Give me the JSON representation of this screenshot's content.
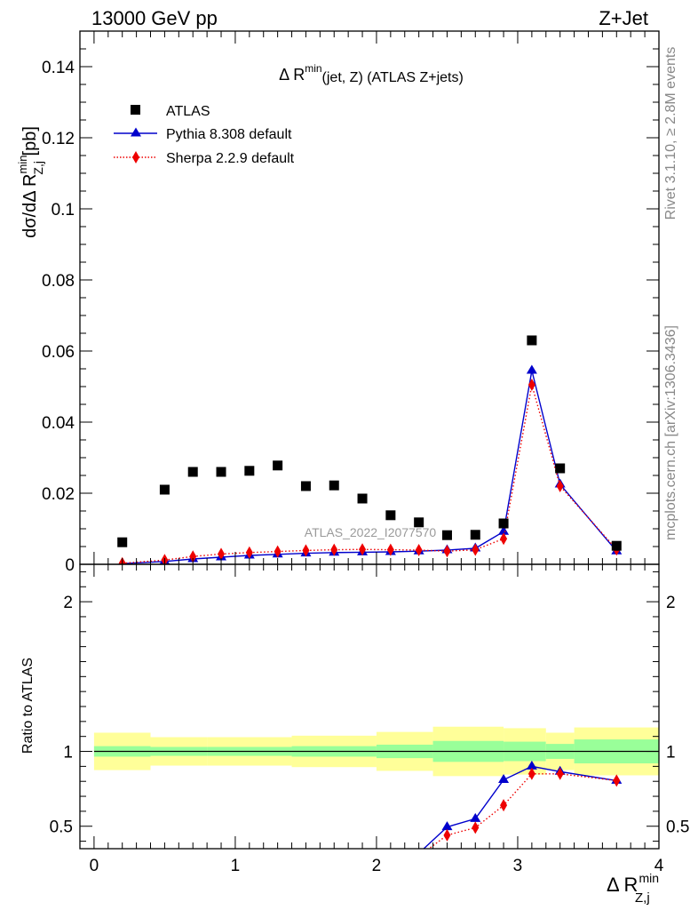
{
  "header": {
    "left": "13000 GeV pp",
    "right": "Z+Jet"
  },
  "side_labels": {
    "rivet": "Rivet 3.1.10, ≥ 2.8M events",
    "mcplots": "mcplots.cern.ch [arXiv:1306.3436]"
  },
  "watermark": "ATLAS_2022_I2077570",
  "chart_data": [
    {
      "type": "scatter",
      "panel": "main",
      "title": "Δ R^min(jet, Z) (ATLAS Z+jets)",
      "title_parts": {
        "pre": "Δ R",
        "sup": "min",
        "sub": "(jet, Z) (ATLAS Z+jets)"
      },
      "ylabel_parts": {
        "pre": "dσ/dΔ R",
        "sup": "min",
        "sub": "Z,j",
        "post": " [pb]"
      },
      "xlim": [
        -0.1,
        4.0
      ],
      "ylim": [
        0,
        0.15
      ],
      "yticks": [
        0,
        0.02,
        0.04,
        0.06,
        0.08,
        0.1,
        0.12,
        0.14
      ],
      "ytick_labels": [
        "0",
        "0.02",
        "0.04",
        "0.06",
        "0.08",
        "0.1",
        "0.12",
        "0.14"
      ],
      "legend_position": "top-left",
      "series": [
        {
          "name": "ATLAS",
          "color": "#000000",
          "marker": "square",
          "x": [
            0.2,
            0.5,
            0.7,
            0.9,
            1.1,
            1.3,
            1.5,
            1.7,
            1.9,
            2.1,
            2.3,
            2.5,
            2.7,
            2.9,
            3.1,
            3.3,
            3.7
          ],
          "y": [
            0.0062,
            0.021,
            0.026,
            0.026,
            0.0263,
            0.0278,
            0.022,
            0.0222,
            0.0185,
            0.0138,
            0.0118,
            0.0082,
            0.0083,
            0.0115,
            0.063,
            0.027,
            0.0052
          ]
        },
        {
          "name": "Pythia 8.308 default",
          "color": "#0000cc",
          "marker": "triangle",
          "line": "solid",
          "x": [
            0.2,
            0.5,
            0.7,
            0.9,
            1.1,
            1.3,
            1.5,
            1.7,
            1.9,
            2.1,
            2.3,
            2.5,
            2.7,
            2.9,
            3.1,
            3.3,
            3.7
          ],
          "y": [
            0.0002,
            0.0008,
            0.0015,
            0.002,
            0.0025,
            0.0028,
            0.0031,
            0.0033,
            0.0034,
            0.0035,
            0.0037,
            0.004,
            0.0045,
            0.0092,
            0.0545,
            0.0225,
            0.0037
          ]
        },
        {
          "name": "Sherpa 2.2.9 default",
          "color": "#ee0000",
          "marker": "diamond",
          "line": "dotted",
          "x": [
            0.2,
            0.5,
            0.7,
            0.9,
            1.1,
            1.3,
            1.5,
            1.7,
            1.9,
            2.1,
            2.3,
            2.5,
            2.7,
            2.9,
            3.1,
            3.3,
            3.7
          ],
          "y": [
            0.0003,
            0.0012,
            0.0022,
            0.0029,
            0.0033,
            0.0036,
            0.0039,
            0.0041,
            0.0042,
            0.0041,
            0.004,
            0.0037,
            0.0041,
            0.0072,
            0.0505,
            0.022,
            0.0042
          ]
        }
      ]
    },
    {
      "type": "line",
      "panel": "ratio",
      "ylabel": "Ratio to ATLAS",
      "xlabel_parts": {
        "pre": "Δ R",
        "sup": "min",
        "sub": "Z,j"
      },
      "xlim": [
        -0.1,
        4.0
      ],
      "ylim": [
        0.35,
        2.25
      ],
      "xticks": [
        0,
        1,
        2,
        3,
        4
      ],
      "xtick_labels": [
        "0",
        "1",
        "2",
        "3",
        "4"
      ],
      "yticks": [
        0.5,
        1,
        2
      ],
      "ytick_labels": [
        "0.5",
        "1",
        "2"
      ],
      "reference": 1,
      "bands": {
        "edges": [
          0.0,
          0.4,
          0.8,
          1.4,
          2.0,
          2.4,
          2.9,
          3.2,
          3.4,
          4.0
        ],
        "inner_color": "#99ff99",
        "outer_color": "#ffff99",
        "inner": [
          [
            0.965,
            1.035
          ],
          [
            0.97,
            1.03
          ],
          [
            0.97,
            1.03
          ],
          [
            0.965,
            1.035
          ],
          [
            0.955,
            1.045
          ],
          [
            0.93,
            1.07
          ],
          [
            0.935,
            1.065
          ],
          [
            0.95,
            1.05
          ],
          [
            0.92,
            1.08
          ]
        ],
        "outer": [
          [
            0.875,
            1.125
          ],
          [
            0.905,
            1.095
          ],
          [
            0.905,
            1.095
          ],
          [
            0.895,
            1.105
          ],
          [
            0.87,
            1.13
          ],
          [
            0.835,
            1.165
          ],
          [
            0.845,
            1.155
          ],
          [
            0.875,
            1.125
          ],
          [
            0.84,
            1.16
          ]
        ]
      },
      "series": [
        {
          "name": "Pythia 8.308 default",
          "color": "#0000cc",
          "marker": "triangle",
          "line": "solid",
          "x": [
            2.3,
            2.5,
            2.7,
            2.9,
            3.1,
            3.3,
            3.7
          ],
          "y": [
            0.32,
            0.495,
            0.55,
            0.81,
            0.9,
            0.865,
            0.805
          ]
        },
        {
          "name": "Sherpa 2.2.9 default",
          "color": "#ee0000",
          "marker": "diamond",
          "line": "dotted",
          "x": [
            2.3,
            2.5,
            2.7,
            2.9,
            3.1,
            3.3,
            3.7
          ],
          "y": [
            0.3,
            0.44,
            0.49,
            0.64,
            0.85,
            0.85,
            0.805
          ]
        }
      ]
    }
  ]
}
